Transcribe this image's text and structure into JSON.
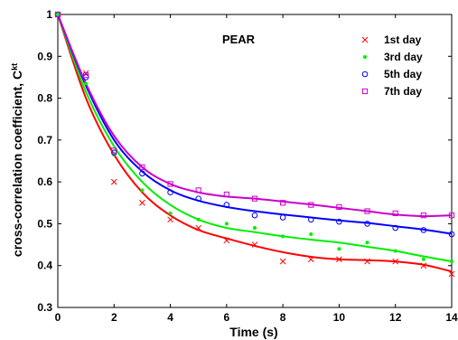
{
  "chart_data": {
    "type": "scatter",
    "title": "PEAR",
    "xlabel": "Time (s)",
    "ylabel_main": "cross-correlation coefficient, C",
    "ylabel_sup": "kt",
    "xlim": [
      0,
      14
    ],
    "ylim": [
      0.3,
      1.0
    ],
    "xticks": [
      "0",
      "2",
      "4",
      "6",
      "8",
      "10",
      "12",
      "14"
    ],
    "yticks": [
      "0.3",
      "0.4",
      "0.5",
      "0.6",
      "0.7",
      "0.8",
      "0.9",
      "1"
    ],
    "legend_position": "top-right",
    "series": [
      {
        "name": "1st day",
        "color": "#ff0000",
        "marker": "x",
        "x": [
          0,
          1,
          2,
          3,
          4,
          5,
          6,
          7,
          8,
          9,
          10,
          11,
          12,
          13,
          14
        ],
        "points": [
          1.0,
          0.86,
          0.6,
          0.55,
          0.51,
          0.49,
          0.46,
          0.45,
          0.41,
          0.415,
          0.415,
          0.41,
          0.41,
          0.4,
          0.38
        ],
        "fit": [
          1.0,
          0.8,
          0.665,
          0.575,
          0.52,
          0.485,
          0.465,
          0.447,
          0.432,
          0.421,
          0.415,
          0.413,
          0.41,
          0.402,
          0.386
        ]
      },
      {
        "name": "3rd day",
        "color": "#00ee00",
        "marker": "dot",
        "x": [
          0,
          1,
          2,
          3,
          4,
          5,
          6,
          7,
          8,
          9,
          10,
          11,
          12,
          13,
          14
        ],
        "points": [
          1.0,
          0.835,
          0.665,
          0.58,
          0.525,
          0.51,
          0.5,
          0.49,
          0.47,
          0.475,
          0.44,
          0.455,
          0.435,
          0.415,
          0.41
        ],
        "fit": [
          1.0,
          0.815,
          0.685,
          0.6,
          0.545,
          0.51,
          0.49,
          0.48,
          0.47,
          0.462,
          0.455,
          0.445,
          0.435,
          0.422,
          0.41
        ]
      },
      {
        "name": "5th day",
        "color": "#0000ff",
        "marker": "circle",
        "x": [
          0,
          1,
          2,
          3,
          4,
          5,
          6,
          7,
          8,
          9,
          10,
          11,
          12,
          13,
          14
        ],
        "points": [
          1.0,
          0.85,
          0.67,
          0.62,
          0.575,
          0.56,
          0.545,
          0.52,
          0.515,
          0.51,
          0.505,
          0.5,
          0.49,
          0.485,
          0.475
        ],
        "fit": [
          1.0,
          0.83,
          0.7,
          0.625,
          0.58,
          0.555,
          0.54,
          0.53,
          0.522,
          0.515,
          0.508,
          0.502,
          0.494,
          0.486,
          0.476
        ]
      },
      {
        "name": "7th day",
        "color": "#cc00cc",
        "marker": "square",
        "x": [
          0,
          1,
          2,
          3,
          4,
          5,
          6,
          7,
          8,
          9,
          10,
          11,
          12,
          13,
          14
        ],
        "points": [
          1.0,
          0.855,
          0.675,
          0.635,
          0.595,
          0.58,
          0.57,
          0.56,
          0.55,
          0.545,
          0.54,
          0.53,
          0.525,
          0.52,
          0.52
        ],
        "fit": [
          1.0,
          0.835,
          0.71,
          0.635,
          0.595,
          0.575,
          0.565,
          0.56,
          0.553,
          0.546,
          0.538,
          0.53,
          0.522,
          0.518,
          0.52
        ]
      }
    ]
  }
}
